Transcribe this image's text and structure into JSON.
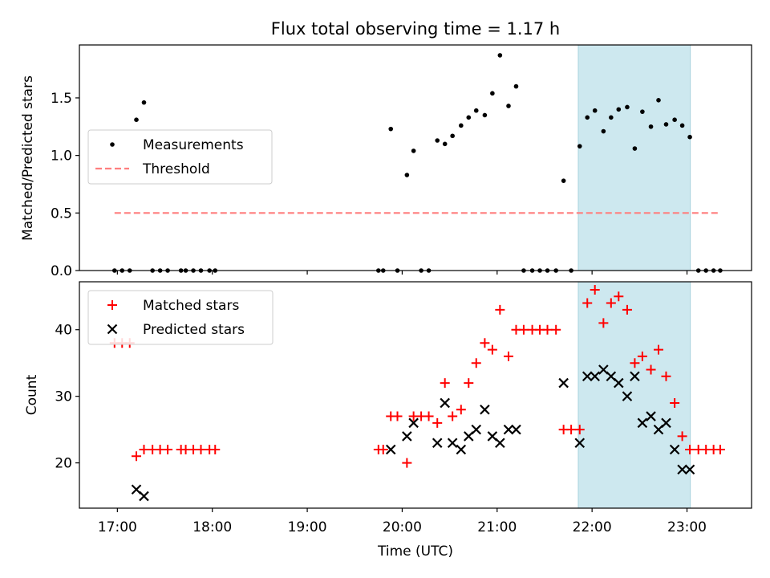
{
  "chart_data": [
    {
      "type": "scatter",
      "title": "Flux total observing time = 1.17 h",
      "xlabel": "",
      "ylabel": "Matched/Predicted stars",
      "xlim": [
        16.6,
        23.68
      ],
      "ylim": [
        0,
        1.96
      ],
      "yticks": [
        0.0,
        0.5,
        1.0,
        1.5
      ],
      "ytick_labels": [
        "0.0",
        "0.5",
        "1.0",
        "1.5"
      ],
      "legend": {
        "position": "center-left",
        "entries": [
          "Measurements",
          "Threshold"
        ]
      },
      "highlight_span": [
        21.855,
        23.035
      ],
      "colors": {
        "measurements": "#000000",
        "threshold": "#ff7f7f",
        "span": "#cde8ef"
      },
      "series": [
        {
          "name": "Measurements",
          "marker": "dot",
          "points": [
            [
              16.97,
              0
            ],
            [
              17.05,
              0
            ],
            [
              17.13,
              0
            ],
            [
              17.2,
              1.31
            ],
            [
              17.28,
              1.46
            ],
            [
              17.37,
              0
            ],
            [
              17.45,
              0
            ],
            [
              17.53,
              0
            ],
            [
              17.67,
              0
            ],
            [
              17.72,
              0
            ],
            [
              17.8,
              0
            ],
            [
              17.88,
              0
            ],
            [
              17.97,
              0
            ],
            [
              18.03,
              0
            ],
            [
              19.75,
              0
            ],
            [
              19.8,
              0
            ],
            [
              19.88,
              1.23
            ],
            [
              19.95,
              0
            ],
            [
              20.05,
              0.83
            ],
            [
              20.12,
              1.04
            ],
            [
              20.2,
              0
            ],
            [
              20.28,
              0
            ],
            [
              20.37,
              1.13
            ],
            [
              20.45,
              1.1
            ],
            [
              20.53,
              1.17
            ],
            [
              20.62,
              1.26
            ],
            [
              20.7,
              1.33
            ],
            [
              20.78,
              1.39
            ],
            [
              20.87,
              1.35
            ],
            [
              20.95,
              1.54
            ],
            [
              21.03,
              1.87
            ],
            [
              21.12,
              1.43
            ],
            [
              21.2,
              1.6
            ],
            [
              21.28,
              0
            ],
            [
              21.37,
              0
            ],
            [
              21.45,
              0
            ],
            [
              21.53,
              0
            ],
            [
              21.62,
              0
            ],
            [
              21.7,
              0.78
            ],
            [
              21.78,
              0
            ],
            [
              21.87,
              1.08
            ],
            [
              21.95,
              1.33
            ],
            [
              22.03,
              1.39
            ],
            [
              22.12,
              1.21
            ],
            [
              22.2,
              1.33
            ],
            [
              22.28,
              1.4
            ],
            [
              22.37,
              1.42
            ],
            [
              22.45,
              1.06
            ],
            [
              22.53,
              1.38
            ],
            [
              22.62,
              1.25
            ],
            [
              22.7,
              1.48
            ],
            [
              22.78,
              1.27
            ],
            [
              22.87,
              1.31
            ],
            [
              22.95,
              1.26
            ],
            [
              23.03,
              1.16
            ],
            [
              23.12,
              0
            ],
            [
              23.2,
              0
            ],
            [
              23.28,
              0
            ],
            [
              23.35,
              0
            ]
          ]
        },
        {
          "name": "Threshold",
          "marker": "dashed-line",
          "points": [
            [
              16.97,
              0.5
            ],
            [
              23.35,
              0.5
            ]
          ]
        }
      ]
    },
    {
      "type": "scatter",
      "title": "",
      "xlabel": "Time (UTC)",
      "ylabel": "Count",
      "xlim": [
        16.6,
        23.68
      ],
      "ylim": [
        13.2,
        47.2
      ],
      "xticks": [
        17,
        18,
        19,
        20,
        21,
        22,
        23
      ],
      "xtick_labels": [
        "17:00",
        "18:00",
        "19:00",
        "20:00",
        "21:00",
        "22:00",
        "23:00"
      ],
      "yticks": [
        20,
        30,
        40
      ],
      "ytick_labels": [
        "20",
        "30",
        "40"
      ],
      "legend": {
        "position": "top-left",
        "entries": [
          "Matched stars",
          "Predicted stars"
        ]
      },
      "highlight_span": [
        21.855,
        23.035
      ],
      "colors": {
        "matched": "#ff0000",
        "predicted": "#000000",
        "span": "#cde8ef"
      },
      "series": [
        {
          "name": "Matched stars",
          "marker": "plus",
          "points": [
            [
              16.97,
              38
            ],
            [
              17.05,
              38
            ],
            [
              17.13,
              38
            ],
            [
              17.2,
              21
            ],
            [
              17.28,
              22
            ],
            [
              17.37,
              22
            ],
            [
              17.45,
              22
            ],
            [
              17.53,
              22
            ],
            [
              17.67,
              22
            ],
            [
              17.72,
              22
            ],
            [
              17.8,
              22
            ],
            [
              17.88,
              22
            ],
            [
              17.97,
              22
            ],
            [
              18.03,
              22
            ],
            [
              19.75,
              22
            ],
            [
              19.8,
              22
            ],
            [
              19.88,
              27
            ],
            [
              19.95,
              27
            ],
            [
              20.05,
              20
            ],
            [
              20.12,
              27
            ],
            [
              20.2,
              27
            ],
            [
              20.28,
              27
            ],
            [
              20.37,
              26
            ],
            [
              20.45,
              32
            ],
            [
              20.53,
              27
            ],
            [
              20.62,
              28
            ],
            [
              20.7,
              32
            ],
            [
              20.78,
              35
            ],
            [
              20.87,
              38
            ],
            [
              20.95,
              37
            ],
            [
              21.03,
              43
            ],
            [
              21.12,
              36
            ],
            [
              21.2,
              40
            ],
            [
              21.28,
              40
            ],
            [
              21.37,
              40
            ],
            [
              21.45,
              40
            ],
            [
              21.53,
              40
            ],
            [
              21.62,
              40
            ],
            [
              21.7,
              25
            ],
            [
              21.78,
              25
            ],
            [
              21.87,
              25
            ],
            [
              21.95,
              44
            ],
            [
              22.03,
              46
            ],
            [
              22.12,
              41
            ],
            [
              22.2,
              44
            ],
            [
              22.28,
              45
            ],
            [
              22.37,
              43
            ],
            [
              22.45,
              35
            ],
            [
              22.53,
              36
            ],
            [
              22.62,
              34
            ],
            [
              22.7,
              37
            ],
            [
              22.78,
              33
            ],
            [
              22.87,
              29
            ],
            [
              22.95,
              24
            ],
            [
              23.03,
              22
            ],
            [
              23.12,
              22
            ],
            [
              23.2,
              22
            ],
            [
              23.28,
              22
            ],
            [
              23.35,
              22
            ]
          ]
        },
        {
          "name": "Predicted stars",
          "marker": "x",
          "points": [
            [
              17.2,
              16
            ],
            [
              17.28,
              15
            ],
            [
              19.88,
              22
            ],
            [
              20.05,
              24
            ],
            [
              20.12,
              26
            ],
            [
              20.37,
              23
            ],
            [
              20.45,
              29
            ],
            [
              20.53,
              23
            ],
            [
              20.62,
              22
            ],
            [
              20.7,
              24
            ],
            [
              20.78,
              25
            ],
            [
              20.87,
              28
            ],
            [
              20.95,
              24
            ],
            [
              21.03,
              23
            ],
            [
              21.12,
              25
            ],
            [
              21.2,
              25
            ],
            [
              21.7,
              32
            ],
            [
              21.87,
              23
            ],
            [
              21.95,
              33
            ],
            [
              22.03,
              33
            ],
            [
              22.12,
              34
            ],
            [
              22.2,
              33
            ],
            [
              22.28,
              32
            ],
            [
              22.37,
              30
            ],
            [
              22.45,
              33
            ],
            [
              22.53,
              26
            ],
            [
              22.62,
              27
            ],
            [
              22.7,
              25
            ],
            [
              22.78,
              26
            ],
            [
              22.87,
              22
            ],
            [
              22.95,
              19
            ],
            [
              23.03,
              19
            ]
          ]
        }
      ]
    }
  ]
}
